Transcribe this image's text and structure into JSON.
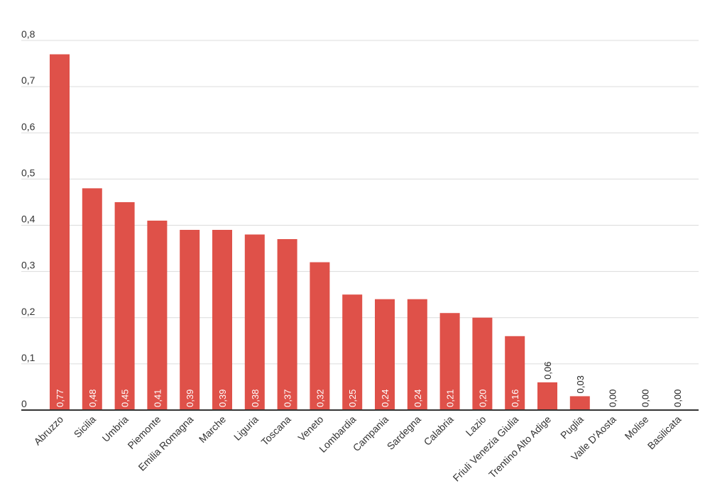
{
  "chart_data": {
    "type": "bar",
    "title": "",
    "xlabel": "",
    "ylabel": "",
    "ylim": [
      0,
      0.8
    ],
    "yticks": [
      0,
      0.1,
      0.2,
      0.3,
      0.4,
      0.5,
      0.6,
      0.7,
      0.8
    ],
    "ytick_labels": [
      "0",
      "0,1",
      "0,2",
      "0,3",
      "0,4",
      "0,5",
      "0,6",
      "0,7",
      "0,8"
    ],
    "grid": true,
    "bar_color": "#DF5149",
    "categories": [
      "Abruzzo",
      "Sicilia",
      "Umbria",
      "Piemonte",
      "Emilia Romagna",
      "Marche",
      "Liguria",
      "Toscana",
      "Veneto",
      "Lombardia",
      "Campania",
      "Sardegna",
      "Calabria",
      "Lazio",
      "Friuli Venezia Giulia",
      "Trentino Alto Adige",
      "Puglia",
      "Valle D'Aosta",
      "Molise",
      "Basilicata"
    ],
    "values": [
      0.77,
      0.48,
      0.45,
      0.41,
      0.39,
      0.39,
      0.38,
      0.37,
      0.32,
      0.25,
      0.24,
      0.24,
      0.21,
      0.2,
      0.16,
      0.06,
      0.03,
      0.0,
      0.0,
      0.0
    ],
    "value_labels": [
      "0,77",
      "0,48",
      "0,45",
      "0,41",
      "0,39",
      "0,39",
      "0,38",
      "0,37",
      "0,32",
      "0,25",
      "0,24",
      "0,24",
      "0,21",
      "0,20",
      "0,16",
      "0,06",
      "0,03",
      "0,00",
      "0,00",
      "0,00"
    ]
  }
}
